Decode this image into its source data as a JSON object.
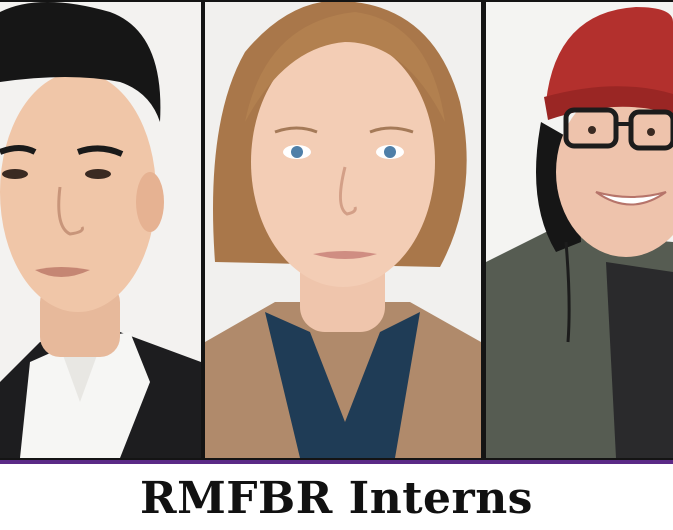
{
  "caption": {
    "title": "RMFBR Interns"
  },
  "portraits": [
    {
      "icon": "portrait-photo-icon"
    },
    {
      "icon": "portrait-photo-icon"
    },
    {
      "icon": "portrait-photo-icon"
    }
  ],
  "colors": {
    "background": "#ffffff",
    "frame": "#141414",
    "accent": "#5b2a86",
    "title": "#111111"
  }
}
